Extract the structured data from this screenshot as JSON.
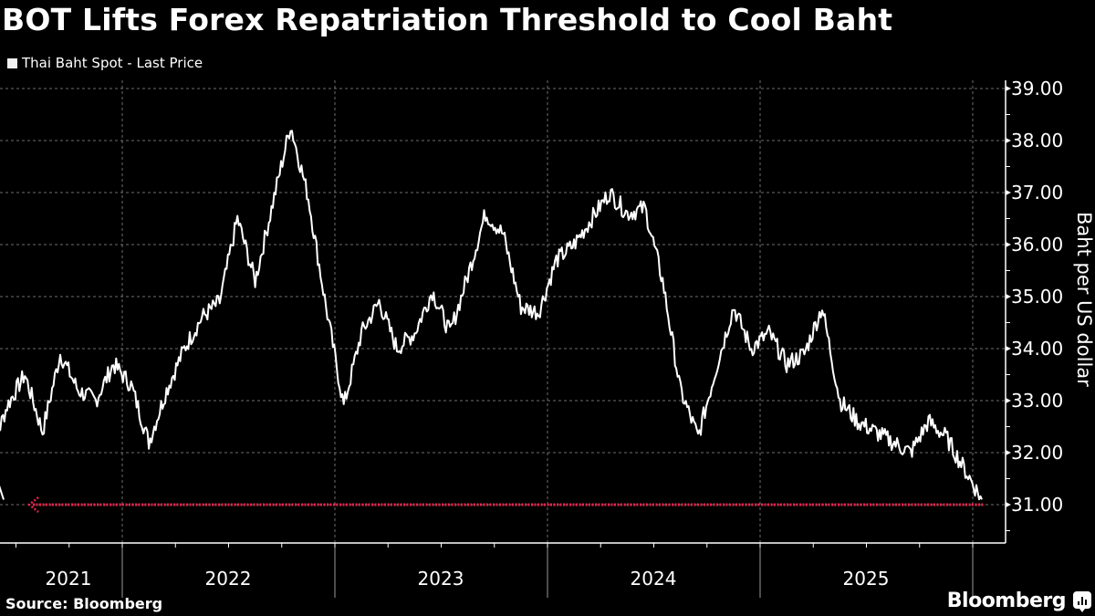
{
  "header": {
    "title": "BOT Lifts Forex Repatriation Threshold to Cool Baht",
    "legend_label": "Thai Baht Spot - Last Price"
  },
  "footer": {
    "source": "Source: Bloomberg",
    "brand": "Bloomberg"
  },
  "colors": {
    "background": "#000000",
    "series": "#ffffff",
    "reference_line": "#e8234d",
    "grid": "#8a8a8a"
  },
  "chart_data": {
    "type": "line",
    "title": "BOT Lifts Forex Repatriation Threshold to Cool Baht",
    "xlabel": "",
    "ylabel": "Baht per US dollar",
    "ylim": [
      30.3,
      39.2
    ],
    "y_ticks": [
      "31.00",
      "32.00",
      "33.00",
      "34.00",
      "35.00",
      "36.00",
      "37.00",
      "38.00",
      "39.00"
    ],
    "x_tick_labels": [
      "2021",
      "2022",
      "2023",
      "2024",
      "2025"
    ],
    "grid": true,
    "legend_position": "top-left",
    "series": [
      {
        "name": "Thai Baht Spot - Last Price",
        "x": [
          "2021-04",
          "2021-05",
          "2021-06",
          "2021-07",
          "2021-08",
          "2021-09",
          "2021-10",
          "2021-11",
          "2021-12",
          "2022-01",
          "2022-02",
          "2022-03",
          "2022-04",
          "2022-05",
          "2022-06",
          "2022-07",
          "2022-08",
          "2022-09",
          "2022-10",
          "2022-11",
          "2022-12",
          "2023-01",
          "2023-02",
          "2023-03",
          "2023-04",
          "2023-05",
          "2023-06",
          "2023-07",
          "2023-08",
          "2023-09",
          "2023-10",
          "2023-11",
          "2023-12",
          "2024-01",
          "2024-02",
          "2024-03",
          "2024-04",
          "2024-05",
          "2024-06",
          "2024-07",
          "2024-08",
          "2024-09",
          "2024-10",
          "2024-11",
          "2024-12",
          "2025-01",
          "2025-02",
          "2025-03",
          "2025-04",
          "2025-05",
          "2025-06",
          "2025-07",
          "2025-08",
          "2025-09",
          "2025-10",
          "2025-11",
          "2025-12"
        ],
        "values": [
          31.1,
          31.9,
          32.9,
          33.5,
          32.4,
          33.9,
          33.2,
          33.0,
          33.7,
          33.3,
          32.2,
          33.2,
          34.0,
          34.6,
          34.9,
          36.5,
          35.3,
          36.8,
          38.3,
          36.9,
          34.8,
          32.9,
          34.3,
          34.9,
          34.0,
          34.3,
          35.1,
          34.3,
          35.4,
          36.6,
          36.2,
          34.8,
          34.7,
          35.7,
          36.0,
          36.5,
          37.0,
          36.6,
          36.7,
          35.3,
          33.2,
          32.3,
          33.6,
          34.8,
          34.0,
          34.3,
          33.7,
          33.9,
          34.8,
          33.0,
          32.6,
          32.4,
          32.2,
          32.0,
          32.6,
          32.3,
          31.1
        ]
      }
    ],
    "annotations": [
      {
        "type": "horizontal-line",
        "value": 31.0,
        "style": "dotted-red-arrow",
        "label": ""
      }
    ]
  }
}
